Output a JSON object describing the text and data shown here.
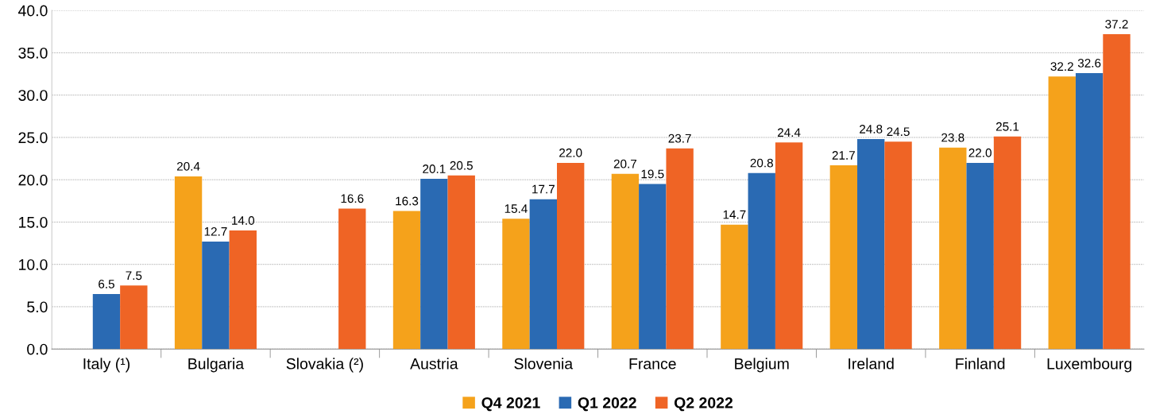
{
  "chart_data": {
    "type": "bar",
    "categories": [
      "Italy (¹)",
      "Bulgaria",
      "Slovakia (²)",
      "Austria",
      "Slovenia",
      "France",
      "Belgium",
      "Ireland",
      "Finland",
      "Luxembourg"
    ],
    "series": [
      {
        "name": "Q4 2021",
        "color": "#f5a21b",
        "values": [
          null,
          20.4,
          null,
          16.3,
          15.4,
          20.7,
          14.7,
          21.7,
          23.8,
          32.2
        ],
        "value_labels": [
          null,
          "20.4",
          null,
          "16.3",
          "15.4",
          "20.7",
          "14.7",
          "21.7",
          "23.8",
          "32.2"
        ]
      },
      {
        "name": "Q1 2022",
        "color": "#2a6ab3",
        "values": [
          6.5,
          12.7,
          null,
          20.1,
          17.7,
          19.5,
          20.8,
          24.8,
          22.0,
          32.6
        ],
        "value_labels": [
          "6.5",
          "12.7",
          null,
          "20.1",
          "17.7",
          "19.5",
          "20.8",
          "24.8",
          "22.0",
          "32.6"
        ]
      },
      {
        "name": "Q2 2022",
        "color": "#ef6425",
        "values": [
          7.5,
          14.0,
          16.6,
          20.5,
          22.0,
          23.7,
          24.4,
          24.5,
          25.1,
          37.2
        ],
        "value_labels": [
          "7.5",
          "14.0",
          "16.6",
          "20.5",
          "22.0",
          "23.7",
          "24.4",
          "24.5",
          "25.1",
          "37.2"
        ]
      }
    ],
    "ylim": [
      0,
      40
    ],
    "yticks": [
      {
        "value": 0,
        "label": "0.0"
      },
      {
        "value": 5,
        "label": "5.0"
      },
      {
        "value": 10,
        "label": "10.0"
      },
      {
        "value": 15,
        "label": "15.0"
      },
      {
        "value": 20,
        "label": "20.0"
      },
      {
        "value": 25,
        "label": "25.0"
      },
      {
        "value": 30,
        "label": "30.0"
      },
      {
        "value": 35,
        "label": "35.0"
      },
      {
        "value": 40,
        "label": "40.0"
      }
    ],
    "grid": "y",
    "legend": "bottom"
  }
}
